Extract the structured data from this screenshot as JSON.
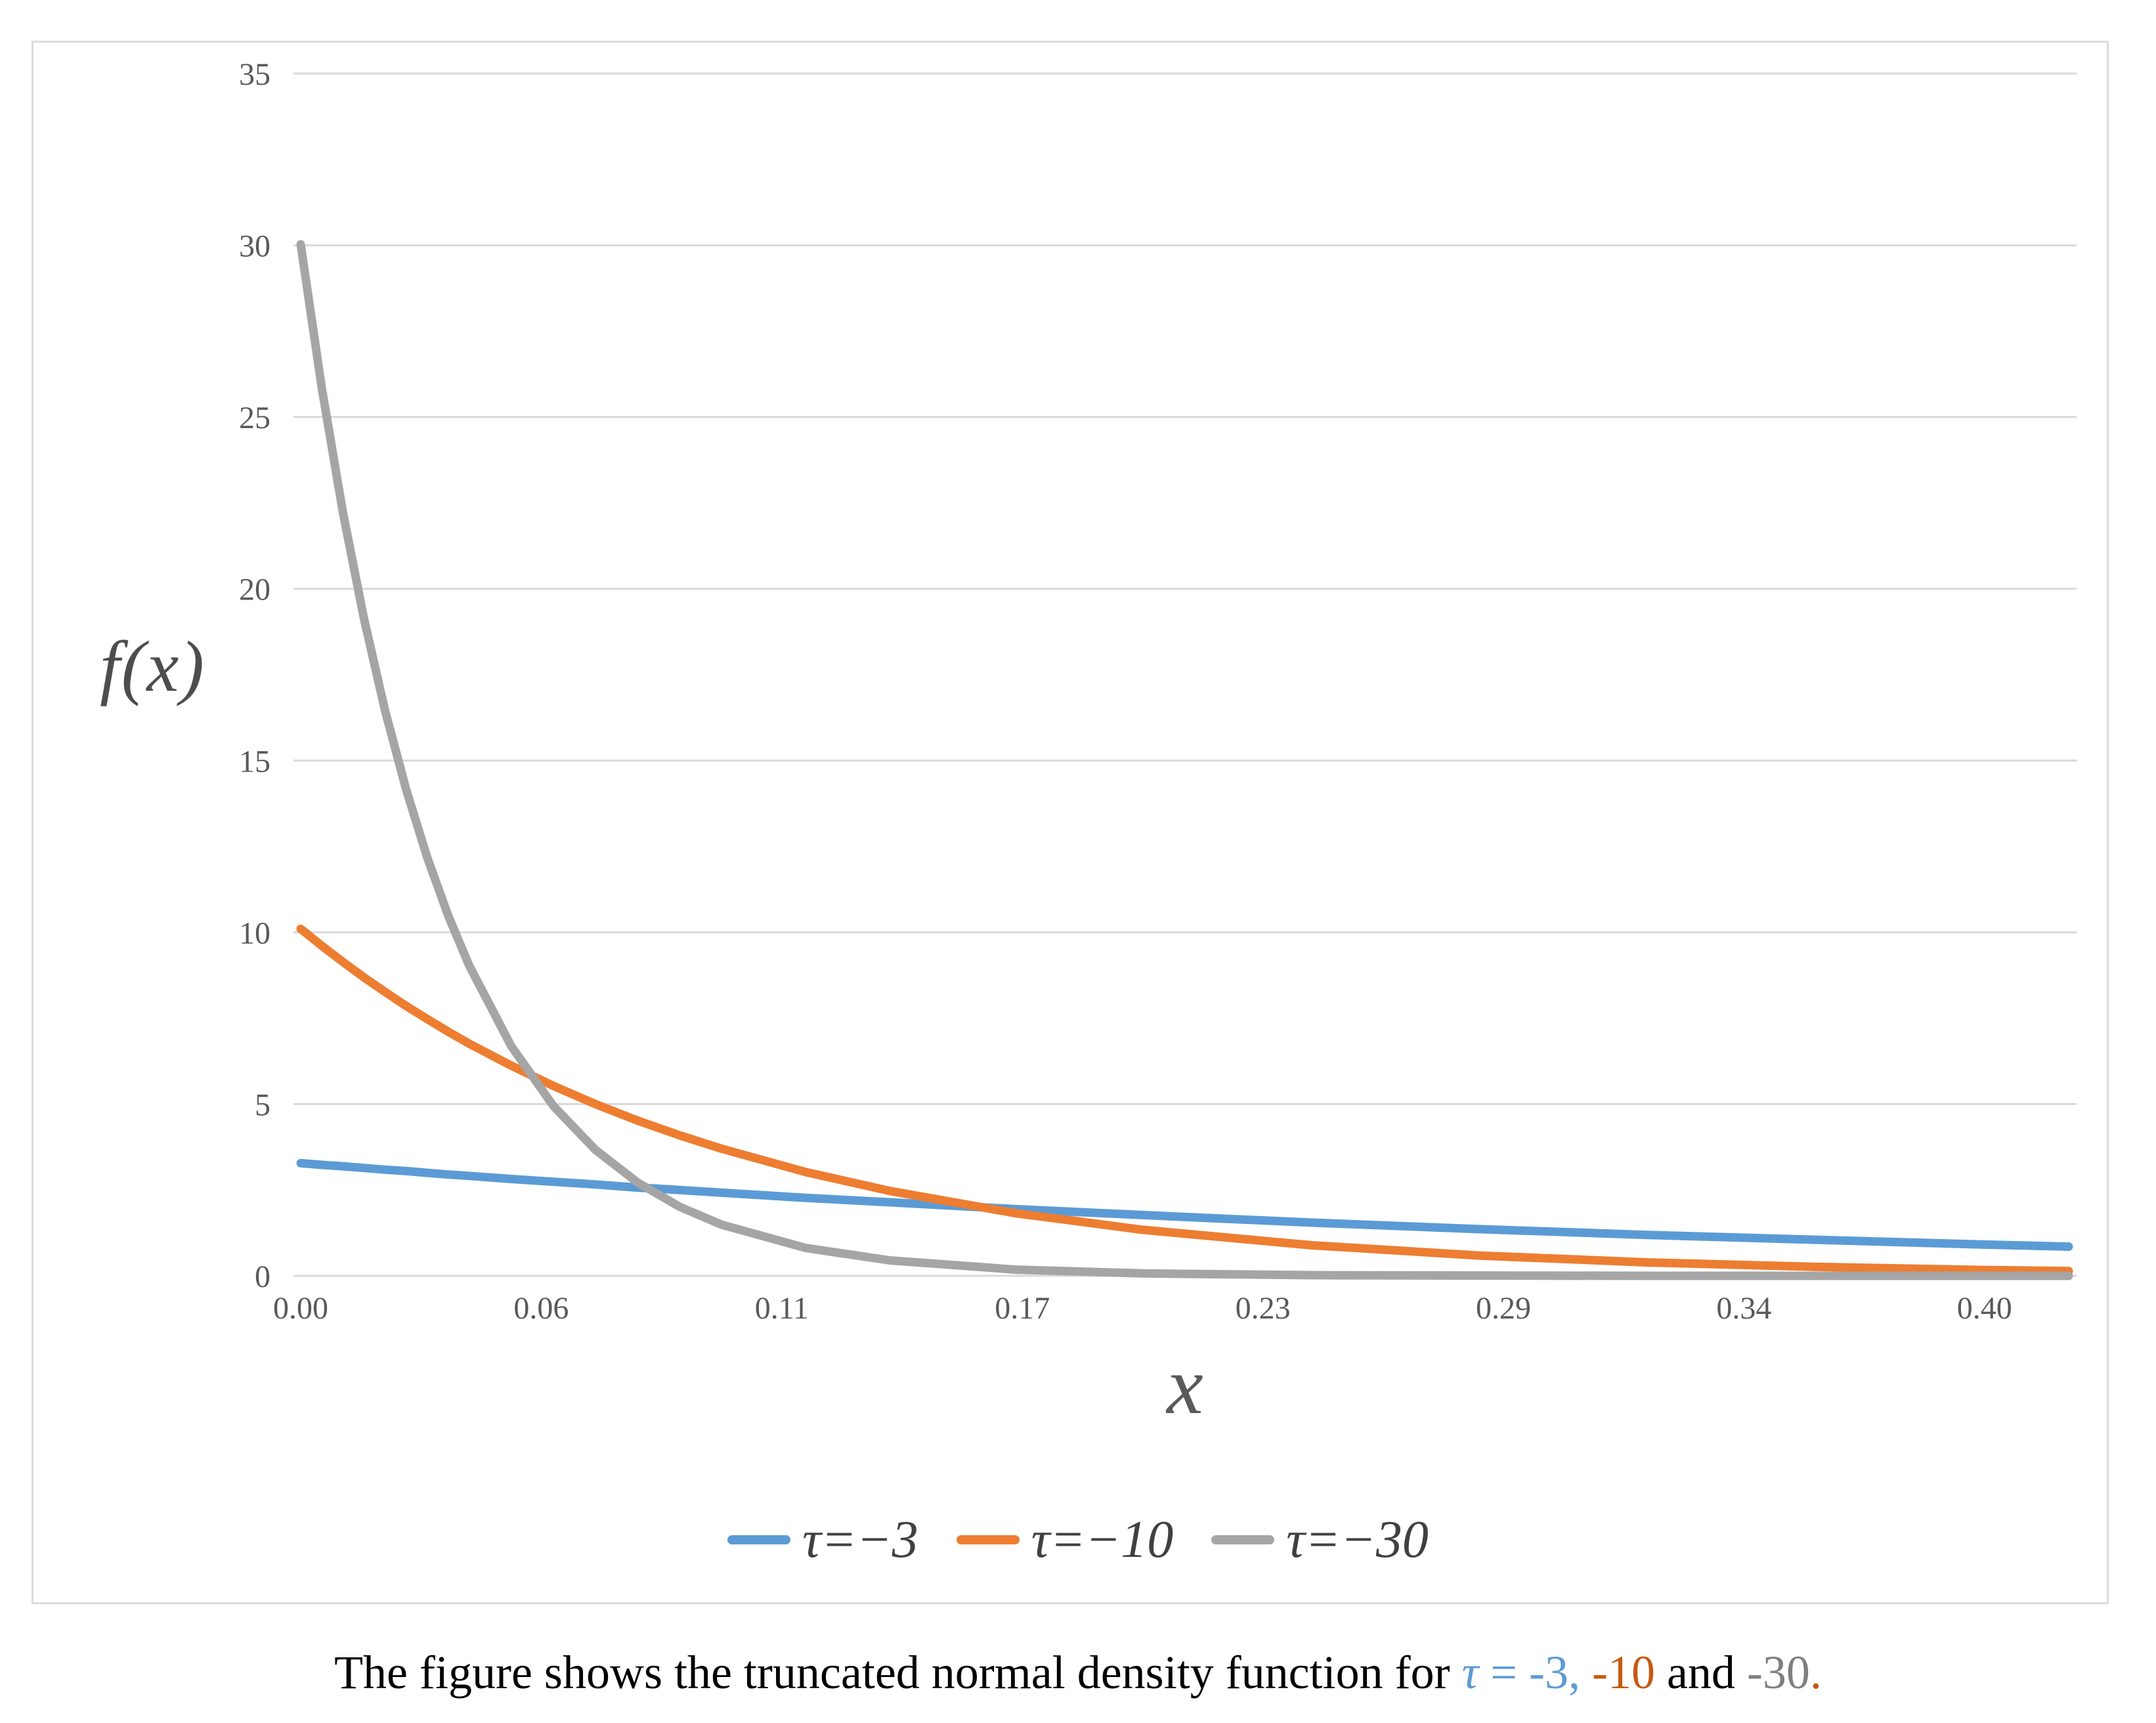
{
  "figure": {
    "background": "#FFFFFF",
    "frame_border_color": "#DCDCDC"
  },
  "chart_data": {
    "type": "line",
    "title": "",
    "xlabel": "x",
    "ylabel": "f(x)",
    "grid": "horizontal",
    "gridline_color": "#D9D9D9",
    "axis_text_color": "#595959",
    "legend_position": "bottom",
    "legend_text_color": "#404040",
    "line_width": 13,
    "xlim": [
      0,
      0.42
    ],
    "ylim": [
      0,
      35
    ],
    "yticks": [
      0,
      5,
      10,
      15,
      20,
      25,
      30,
      35
    ],
    "xticks": [
      {
        "x": 0.0,
        "label": "0.00"
      },
      {
        "x": 0.05714,
        "label": "0.06"
      },
      {
        "x": 0.11429,
        "label": "0.11"
      },
      {
        "x": 0.17143,
        "label": "0.17"
      },
      {
        "x": 0.22857,
        "label": "0.23"
      },
      {
        "x": 0.28571,
        "label": "0.29"
      },
      {
        "x": 0.34286,
        "label": "0.34"
      },
      {
        "x": 0.4,
        "label": "0.40"
      }
    ],
    "x": [
      0,
      0.005,
      0.01,
      0.015,
      0.02,
      0.025,
      0.03,
      0.035,
      0.04,
      0.05,
      0.06,
      0.07,
      0.08,
      0.09,
      0.1,
      0.12,
      0.14,
      0.17,
      0.2,
      0.24,
      0.28,
      0.32,
      0.36,
      0.4,
      0.42
    ],
    "series": [
      {
        "name": "τ=−3",
        "slug": "tau-minus-3",
        "color": "#5B9BD5",
        "values": [
          3.28,
          3.23,
          3.19,
          3.14,
          3.09,
          3.05,
          3.0,
          2.95,
          2.91,
          2.82,
          2.74,
          2.66,
          2.57,
          2.5,
          2.42,
          2.27,
          2.14,
          1.94,
          1.77,
          1.55,
          1.36,
          1.19,
          1.05,
          0.91,
          0.85
        ]
      },
      {
        "name": "τ=−10",
        "slug": "tau-minus-10",
        "color": "#ED7D31",
        "values": [
          10.1,
          9.61,
          9.14,
          8.69,
          8.27,
          7.86,
          7.48,
          7.11,
          6.76,
          6.12,
          5.53,
          5.0,
          4.52,
          4.09,
          3.7,
          3.02,
          2.47,
          1.82,
          1.34,
          0.89,
          0.59,
          0.39,
          0.26,
          0.17,
          0.14
        ]
      },
      {
        "name": "τ=−30",
        "slug": "tau-minus-30",
        "color": "#A5A5A5",
        "values": [
          30.03,
          25.85,
          22.25,
          19.15,
          16.48,
          14.18,
          12.2,
          10.5,
          9.04,
          6.69,
          4.95,
          3.67,
          2.72,
          2.01,
          1.49,
          0.81,
          0.45,
          0.18,
          0.07,
          0.02,
          0.01,
          0.0,
          0.0,
          0.0,
          0.0
        ]
      }
    ]
  },
  "caption": {
    "segments": [
      {
        "text": "The figure shows the truncated normal density function for ",
        "color": "#000000",
        "italic": false
      },
      {
        "text": "τ",
        "color": "#5B9BD5",
        "italic": true
      },
      {
        "text": " = -3,",
        "color": "#5B9BD5",
        "italic": false
      },
      {
        "text": " -10",
        "color": "#C55A11",
        "italic": false
      },
      {
        "text": " and",
        "color": "#000000",
        "italic": false
      },
      {
        "text": " -30",
        "color": "#7F7F7F",
        "italic": false
      },
      {
        "text": ".",
        "color": "#C55A11",
        "italic": false
      }
    ]
  }
}
